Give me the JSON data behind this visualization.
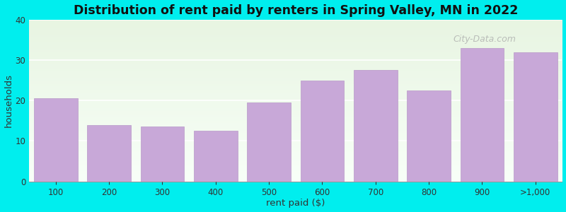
{
  "categories": [
    "100",
    "200",
    "300",
    "400",
    "500",
    "600",
    "700",
    "800",
    "900",
    ">1,000"
  ],
  "values": [
    20.5,
    14,
    13.5,
    12.5,
    19.5,
    25,
    27.5,
    22.5,
    33,
    32
  ],
  "bar_color": "#c8a8d8",
  "bar_edge_color": "#b898c8",
  "title": "Distribution of rent paid by renters in Spring Valley, MN in 2022",
  "xlabel": "rent paid ($)",
  "ylabel": "households",
  "ylim": [
    0,
    40
  ],
  "yticks": [
    0,
    10,
    20,
    30,
    40
  ],
  "figure_bg": "#00eeee",
  "plot_bg_top": "#e8f5e2",
  "plot_bg_bottom": "#f8fff8",
  "title_fontsize": 12.5,
  "axis_label_fontsize": 9.5,
  "tick_fontsize": 8.5,
  "watermark_text": "City-Data.com",
  "grid_color": "#ffffff",
  "grid_linewidth": 1.2,
  "bar_width": 0.82
}
